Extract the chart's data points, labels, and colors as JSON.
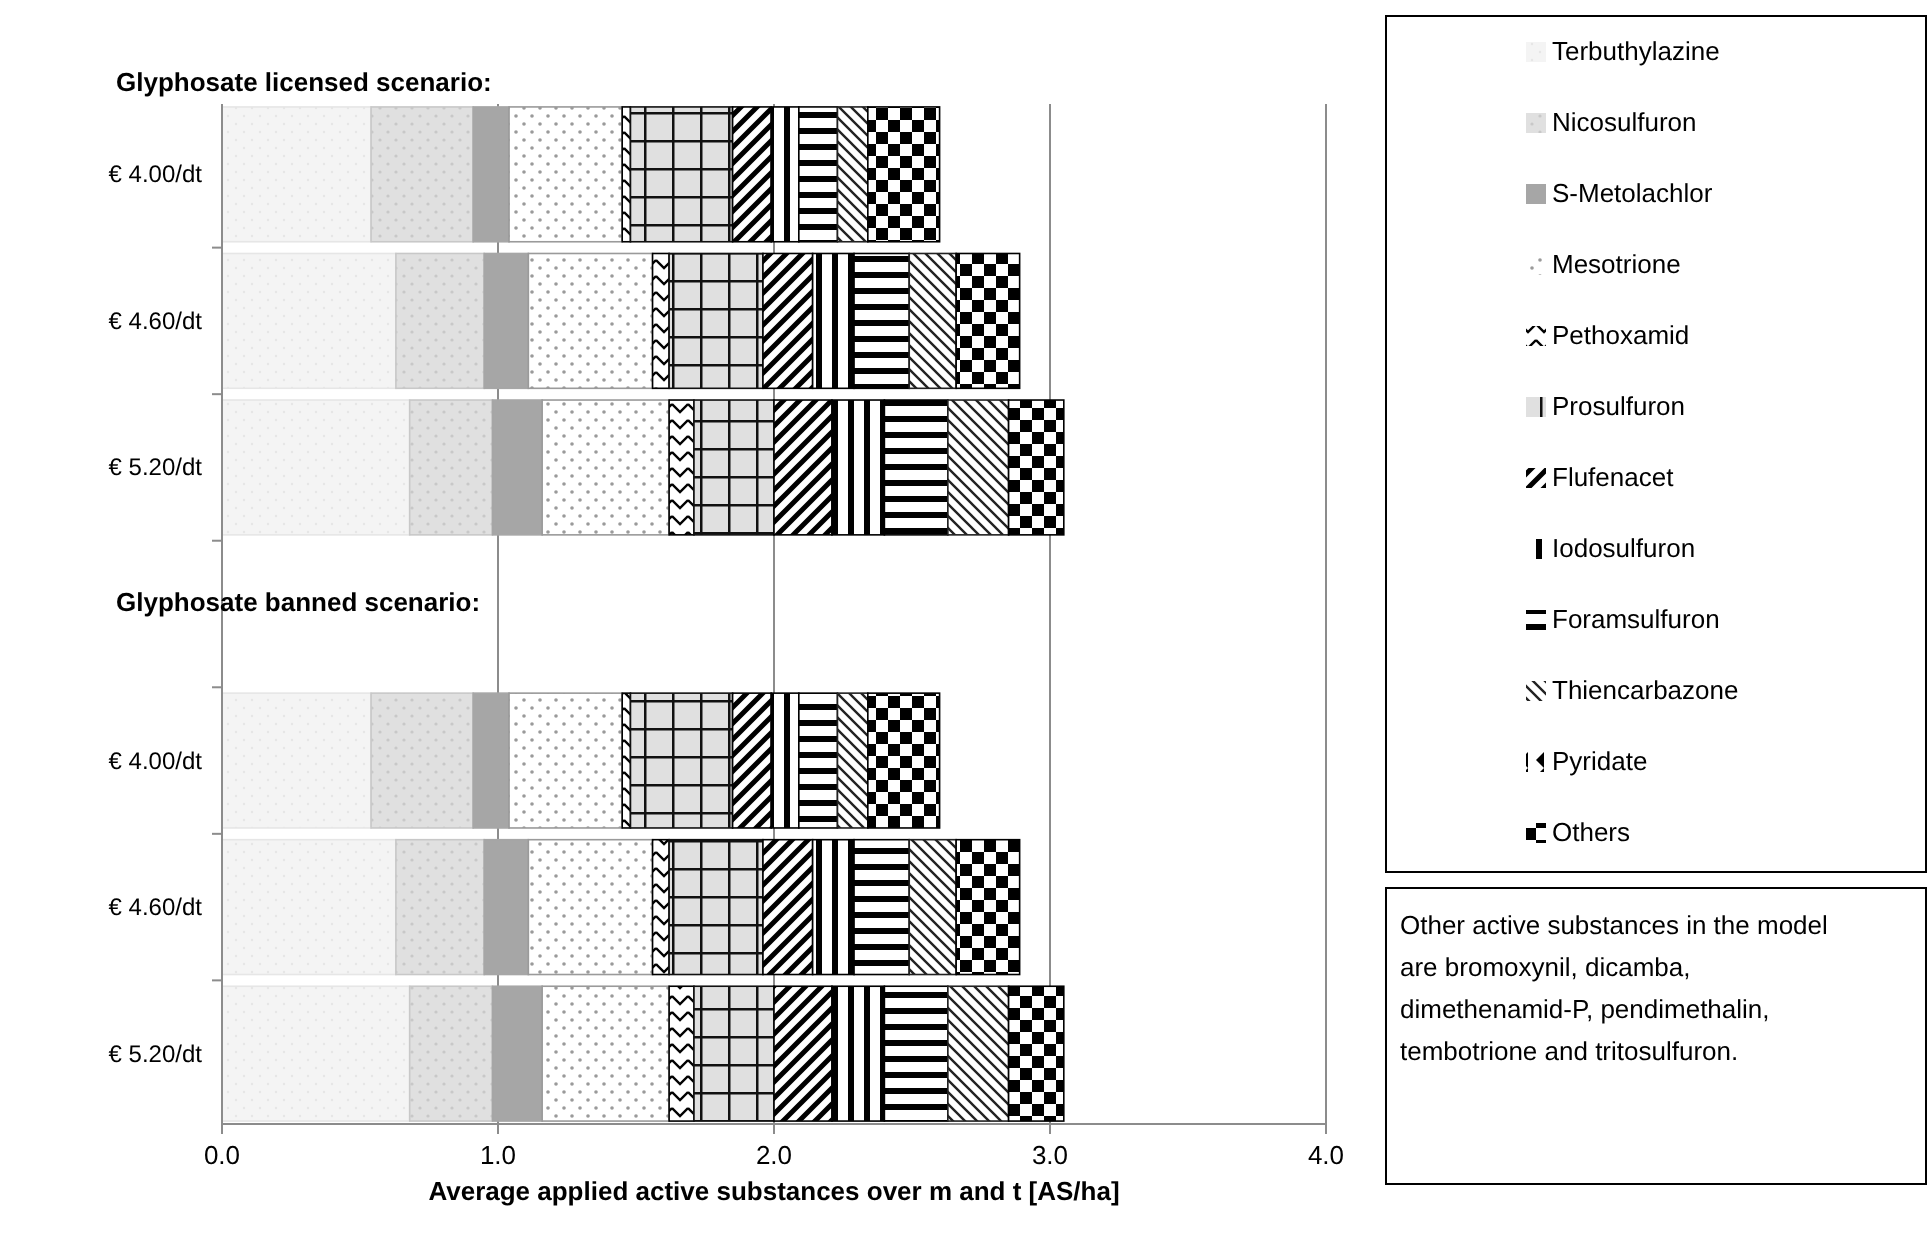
{
  "chart_data": {
    "type": "bar",
    "orientation": "horizontal",
    "stacked": true,
    "categories": [
      "€ 4.00/dt",
      "€ 4.60/dt",
      "€ 5.20/dt",
      null,
      "€ 4.00/dt",
      "€ 4.60/dt",
      "€ 5.20/dt"
    ],
    "series": [
      {
        "name": "Terbuthylazine",
        "color": "#e6e6e6",
        "values": [
          0.54,
          0.63,
          0.68,
          null,
          0.54,
          0.63,
          0.68
        ]
      },
      {
        "name": "Nicosulfuron",
        "color": "#c8c8c8",
        "values": [
          0.37,
          0.32,
          0.3,
          null,
          0.37,
          0.32,
          0.3
        ]
      },
      {
        "name": "S-Metolachlor",
        "color": "#a6a6a6",
        "values": [
          0.13,
          0.16,
          0.18,
          null,
          0.13,
          0.16,
          0.18
        ]
      },
      {
        "name": "Mesotrione",
        "color": "#9a9a9a",
        "values": [
          0.41,
          0.45,
          0.46,
          null,
          0.41,
          0.45,
          0.46
        ]
      },
      {
        "name": "Pethoxamid",
        "color": "#000000",
        "values": [
          0.03,
          0.06,
          0.09,
          null,
          0.03,
          0.06,
          0.09
        ]
      },
      {
        "name": "Prosulfuron",
        "color": "#111111",
        "values": [
          0.37,
          0.34,
          0.29,
          null,
          0.37,
          0.34,
          0.29
        ]
      },
      {
        "name": "Flufenacet",
        "color": "#000000",
        "values": [
          0.14,
          0.18,
          0.21,
          null,
          0.14,
          0.18,
          0.21
        ]
      },
      {
        "name": "Iodosulfuron",
        "color": "#000000",
        "values": [
          0.1,
          0.15,
          0.19,
          null,
          0.1,
          0.15,
          0.19
        ]
      },
      {
        "name": "Foramsulfuron",
        "color": "#000000",
        "values": [
          0.14,
          0.2,
          0.23,
          null,
          0.14,
          0.2,
          0.23
        ]
      },
      {
        "name": "Thiencarbazone",
        "color": "#222222",
        "values": [
          0.11,
          0.17,
          0.22,
          null,
          0.11,
          0.17,
          0.22
        ]
      },
      {
        "name": "Pyridate",
        "color": "#000000",
        "values": [
          0,
          0,
          0,
          null,
          0,
          0,
          0
        ]
      },
      {
        "name": "Others",
        "color": "#000000",
        "values": [
          0.26,
          0.23,
          0.2,
          null,
          0.26,
          0.23,
          0.2
        ]
      }
    ],
    "xlim": [
      0,
      4
    ],
    "xticks": [
      {
        "value": 0,
        "label": "0.0"
      },
      {
        "value": 1,
        "label": "1.0"
      },
      {
        "value": 2,
        "label": "2.0"
      },
      {
        "value": 3,
        "label": "3.0"
      },
      {
        "value": 4,
        "label": "4.0"
      }
    ],
    "xlabel": "Average applied active substances over m and t [AS/ha]",
    "grid": "x",
    "legend": "right",
    "annotations": [
      "Glyphosate licensed scenario:",
      "Glyphosate banned scenario:",
      "Other active substances in the model are bromoxynil, dicamba, dimethenamid-P, pendimethalin, tembotrione and tritosulfuron."
    ]
  }
}
